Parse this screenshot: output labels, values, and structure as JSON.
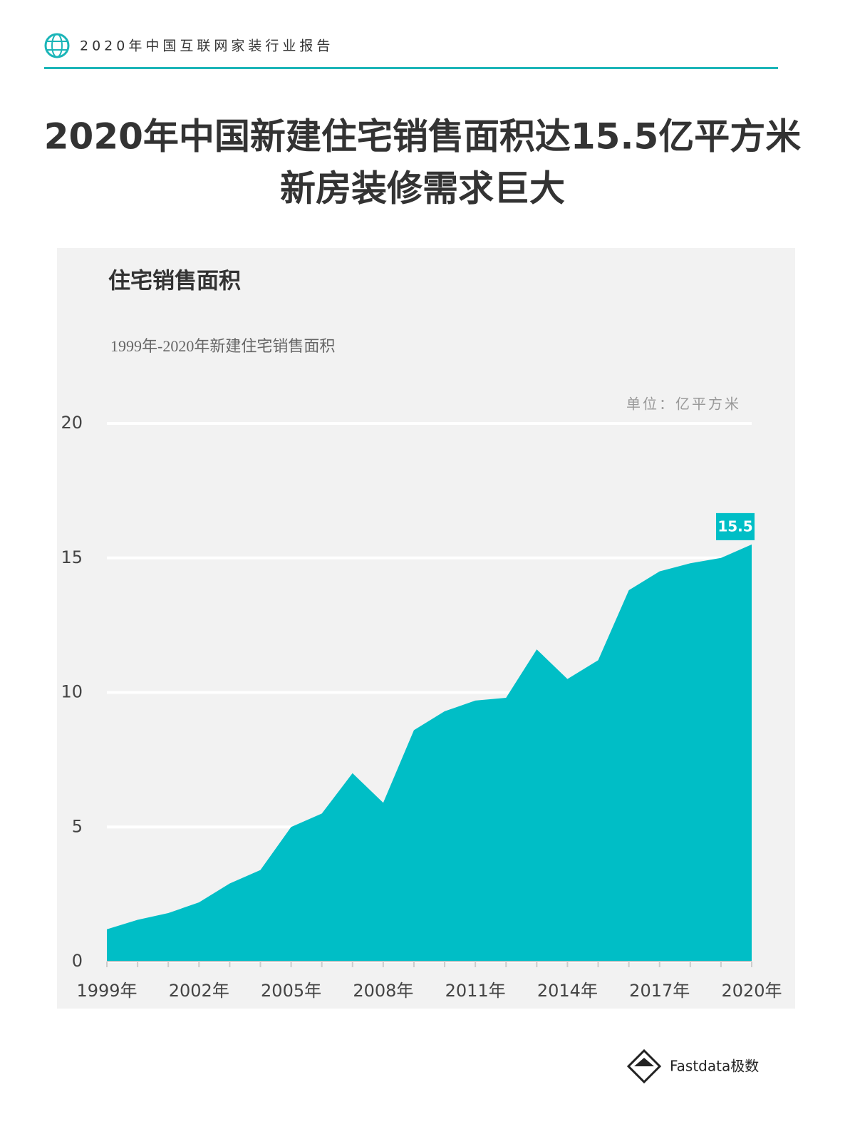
{
  "header": {
    "title": "2020年中国互联网家装行业报告"
  },
  "headline": {
    "line1": "2020年中国新建住宅销售面积达15.5亿平方米",
    "line2": "新房装修需求巨大"
  },
  "chart_data": {
    "type": "area",
    "title": "住宅销售面积",
    "subtitle": "1999年-2020年新建住宅销售面积",
    "unit_note": "单位：亿平方米",
    "categories": [
      "1999年",
      null,
      null,
      "2002年",
      null,
      null,
      "2005年",
      null,
      null,
      "2008年",
      null,
      null,
      "2011年",
      null,
      null,
      "2014年",
      null,
      null,
      "2017年",
      null,
      null,
      "2020年"
    ],
    "values": [
      1.2,
      1.55,
      1.8,
      2.2,
      2.9,
      3.4,
      5.0,
      5.5,
      7.0,
      5.9,
      8.6,
      9.3,
      9.7,
      9.8,
      11.6,
      10.5,
      11.2,
      13.8,
      14.5,
      14.8,
      15.0,
      15.5
    ],
    "labeled_point": 21,
    "color": "#00bec6",
    "ylim": [
      0,
      20
    ],
    "yticks": [
      0,
      5,
      10,
      15,
      20
    ],
    "grid": true
  },
  "footer": {
    "logo": "Fastdata极数"
  }
}
